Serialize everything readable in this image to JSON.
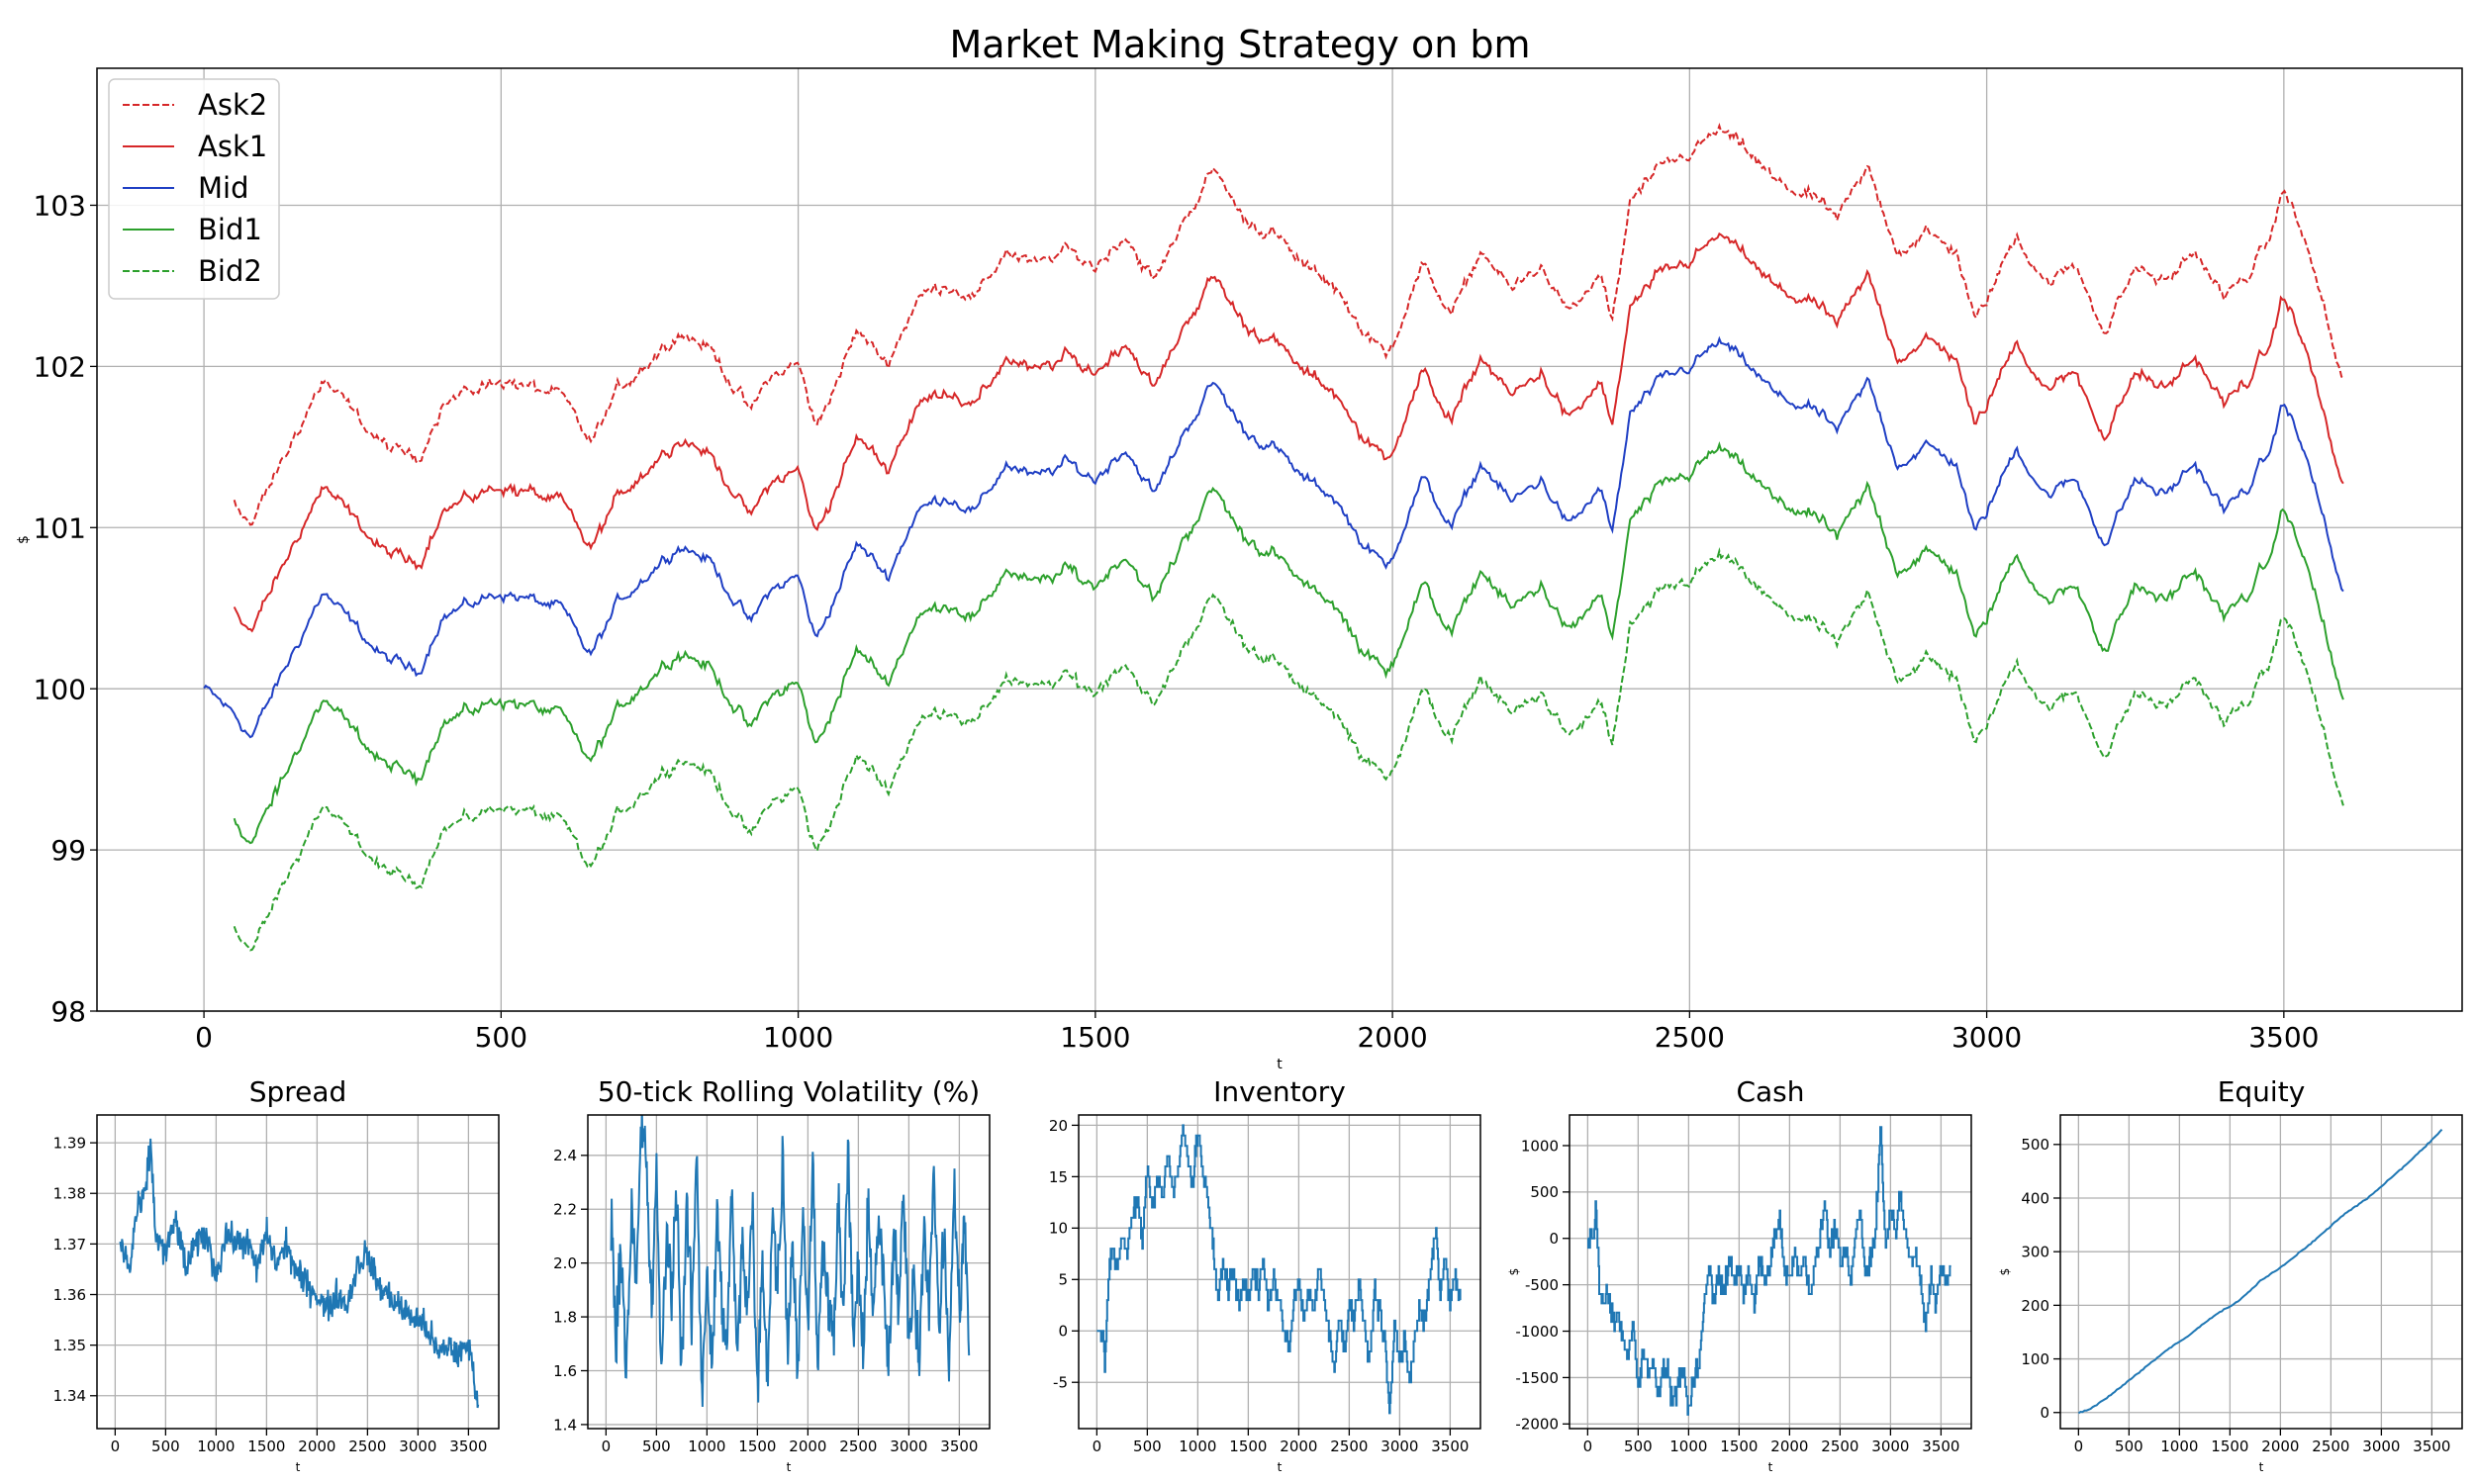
{
  "figure": {
    "title": "Market Making Strategy on bm"
  },
  "chart_data": [
    {
      "id": "main",
      "type": "line",
      "title": "Market Making Strategy on bm",
      "xlabel": "t",
      "ylabel": "$",
      "xlim": [
        -180,
        3800
      ],
      "ylim": [
        98,
        103.85
      ],
      "xticks": [
        "0",
        "500",
        "1000",
        "1500",
        "2000",
        "2500",
        "3000",
        "3500"
      ],
      "yticks": [
        "98",
        "99",
        "100",
        "101",
        "102",
        "103"
      ],
      "grid": true,
      "legend": {
        "placement": "top-left"
      },
      "x": [
        0,
        50,
        80,
        200,
        250,
        300,
        360,
        400,
        500,
        600,
        650,
        700,
        800,
        850,
        920,
        950,
        1000,
        1030,
        1100,
        1150,
        1200,
        1250,
        1300,
        1350,
        1400,
        1450,
        1500,
        1550,
        1600,
        1650,
        1700,
        1750,
        1800,
        1850,
        1900,
        1950,
        1990,
        2050,
        2100,
        2150,
        2200,
        2250,
        2300,
        2350,
        2370,
        2400,
        2450,
        2500,
        2550,
        2600,
        2650,
        2700,
        2750,
        2800,
        2850,
        2900,
        2950,
        2980,
        3000,
        3050,
        3100,
        3150,
        3200,
        3250,
        3300,
        3350,
        3400,
        3450,
        3480,
        3500,
        3550,
        3590,
        3600
      ],
      "series": [
        {
          "name": "Ask2",
          "color": "#d62728",
          "dashed": true,
          "offset": 1.32,
          "start": 50
        },
        {
          "name": "Ask1",
          "color": "#d62728",
          "dashed": false,
          "offset": 0.66,
          "start": 50
        },
        {
          "name": "Mid",
          "color": "#1f3fc4",
          "dashed": false,
          "offset": 0,
          "start": 0,
          "values": [
            100.0,
            99.85,
            99.7,
            100.6,
            100.4,
            100.2,
            100.1,
            100.45,
            100.6,
            100.5,
            100.2,
            100.55,
            100.9,
            100.8,
            100.4,
            100.6,
            100.7,
            100.3,
            100.9,
            100.7,
            101.1,
            101.2,
            101.1,
            101.4,
            101.3,
            101.4,
            101.3,
            101.5,
            101.2,
            101.6,
            101.9,
            101.6,
            101.5,
            101.3,
            101.2,
            100.9,
            100.75,
            101.3,
            101.0,
            101.4,
            101.15,
            101.3,
            101.0,
            101.25,
            100.95,
            101.7,
            101.9,
            102.0,
            102.15,
            102.0,
            101.8,
            101.75,
            101.6,
            101.9,
            101.4,
            101.5,
            101.4,
            100.95,
            101.1,
            101.5,
            101.2,
            101.3,
            100.9,
            101.3,
            101.2,
            101.4,
            101.1,
            101.3,
            101.5,
            101.8,
            101.3,
            100.7,
            100.6
          ]
        },
        {
          "name": "Bid1",
          "color": "#2ca02c",
          "dashed": false,
          "offset": -0.66,
          "start": 50
        },
        {
          "name": "Bid2",
          "color": "#2ca02c",
          "dashed": true,
          "offset": -1.32,
          "start": 50
        }
      ]
    },
    {
      "id": "spread",
      "type": "line",
      "title": "Spread",
      "xlabel": "t",
      "ylabel": "",
      "xlim": [
        -180,
        3800
      ],
      "ylim": [
        1.3335,
        1.3955
      ],
      "xticks": [
        "0",
        "500",
        "1000",
        "1500",
        "2000",
        "2500",
        "3000",
        "3500"
      ],
      "yticks": [
        "1.34",
        "1.35",
        "1.36",
        "1.37",
        "1.38",
        "1.39"
      ],
      "grid": true,
      "color": "#1f77b4",
      "x": [
        50,
        150,
        200,
        300,
        350,
        400,
        500,
        600,
        700,
        800,
        900,
        1000,
        1100,
        1200,
        1300,
        1400,
        1500,
        1600,
        1700,
        1800,
        1900,
        2000,
        2100,
        2200,
        2300,
        2400,
        2500,
        2600,
        2700,
        2800,
        2900,
        3000,
        3100,
        3200,
        3300,
        3400,
        3500,
        3550,
        3600
      ],
      "values": [
        1.37,
        1.365,
        1.375,
        1.38,
        1.39,
        1.372,
        1.368,
        1.375,
        1.365,
        1.37,
        1.372,
        1.364,
        1.372,
        1.37,
        1.371,
        1.365,
        1.372,
        1.366,
        1.37,
        1.364,
        1.362,
        1.36,
        1.357,
        1.36,
        1.358,
        1.366,
        1.368,
        1.362,
        1.36,
        1.358,
        1.356,
        1.355,
        1.353,
        1.348,
        1.35,
        1.348,
        1.35,
        1.345,
        1.337
      ]
    },
    {
      "id": "volatility",
      "type": "line",
      "title": "50-tick Rolling Volatility (%)",
      "xlabel": "t",
      "ylabel": "",
      "xlim": [
        -180,
        3800
      ],
      "ylim": [
        1.385,
        2.55
      ],
      "xticks": [
        "0",
        "500",
        "1000",
        "1500",
        "2000",
        "2500",
        "3000",
        "3500"
      ],
      "yticks": [
        "1.4",
        "1.6",
        "1.8",
        "2.0",
        "2.2",
        "2.4"
      ],
      "grid": true,
      "color": "#1f77b4",
      "x": [
        50,
        100,
        150,
        200,
        250,
        300,
        350,
        400,
        450,
        500,
        550,
        600,
        650,
        700,
        750,
        800,
        850,
        900,
        950,
        1000,
        1050,
        1100,
        1150,
        1200,
        1250,
        1300,
        1350,
        1400,
        1450,
        1500,
        1550,
        1600,
        1650,
        1700,
        1750,
        1800,
        1850,
        1900,
        1950,
        2000,
        2050,
        2100,
        2150,
        2200,
        2250,
        2300,
        2350,
        2400,
        2450,
        2500,
        2550,
        2600,
        2650,
        2700,
        2750,
        2800,
        2850,
        2900,
        2950,
        3000,
        3050,
        3100,
        3150,
        3200,
        3250,
        3300,
        3350,
        3400,
        3450,
        3500,
        3550,
        3600
      ],
      "values": [
        2.2,
        1.7,
        2.1,
        1.6,
        2.2,
        1.9,
        2.5,
        2.4,
        1.8,
        2.3,
        1.6,
        2.1,
        1.9,
        2.3,
        1.6,
        2.2,
        1.8,
        2.4,
        1.5,
        2.0,
        1.6,
        2.2,
        1.8,
        1.7,
        2.3,
        1.6,
        2.1,
        1.8,
        2.2,
        1.5,
        2.0,
        1.6,
        2.2,
        1.9,
        2.4,
        1.7,
        2.1,
        1.6,
        2.2,
        1.8,
        2.35,
        1.6,
        2.1,
        1.9,
        1.7,
        2.2,
        1.8,
        2.4,
        1.7,
        2.0,
        1.6,
        2.25,
        1.8,
        2.2,
        1.9,
        1.6,
        2.1,
        1.8,
        2.3,
        1.7,
        2.0,
        1.6,
        2.2,
        1.8,
        2.35,
        1.75,
        2.1,
        1.6,
        2.3,
        1.8,
        2.2,
        1.6
      ]
    },
    {
      "id": "inventory",
      "type": "line",
      "title": "Inventory",
      "xlabel": "t",
      "ylabel": "",
      "xlim": [
        -180,
        3800
      ],
      "ylim": [
        -9.5,
        21
      ],
      "xticks": [
        "0",
        "500",
        "1000",
        "1500",
        "2000",
        "2500",
        "3000",
        "3500"
      ],
      "yticks": [
        "-5",
        "0",
        "5",
        "10",
        "15",
        "20"
      ],
      "grid": true,
      "color": "#1f77b4",
      "step": true,
      "x": [
        0,
        60,
        80,
        100,
        120,
        150,
        200,
        250,
        300,
        350,
        400,
        450,
        500,
        550,
        600,
        650,
        700,
        750,
        800,
        850,
        900,
        950,
        1000,
        1050,
        1100,
        1150,
        1200,
        1250,
        1300,
        1350,
        1400,
        1450,
        1500,
        1550,
        1600,
        1650,
        1700,
        1750,
        1800,
        1850,
        1900,
        1950,
        2000,
        2050,
        2100,
        2150,
        2200,
        2250,
        2300,
        2350,
        2400,
        2450,
        2500,
        2550,
        2600,
        2650,
        2700,
        2750,
        2800,
        2850,
        2900,
        2950,
        3000,
        3050,
        3100,
        3150,
        3200,
        3250,
        3300,
        3350,
        3400,
        3450,
        3500,
        3550,
        3600
      ],
      "values": [
        0,
        0,
        -4,
        2,
        6,
        8,
        6,
        9,
        8,
        11,
        13,
        9,
        16,
        12,
        15,
        13,
        17,
        14,
        15,
        20,
        17,
        14,
        20,
        15,
        13,
        8,
        3,
        7,
        4,
        6,
        2,
        5,
        3,
        6,
        4,
        7,
        2,
        5,
        3,
        0,
        -2,
        3,
        5,
        1,
        4,
        2,
        6,
        3,
        0,
        -4,
        2,
        -2,
        3,
        1,
        5,
        0,
        -3,
        4,
        2,
        -1,
        -8,
        1,
        -3,
        -1,
        -5,
        0,
        2,
        1,
        5,
        10,
        4,
        7,
        3,
        5,
        3
      ]
    },
    {
      "id": "cash",
      "type": "line",
      "title": "Cash",
      "xlabel": "t",
      "ylabel": "$",
      "xlim": [
        -180,
        3800
      ],
      "ylim": [
        -2050,
        1330
      ],
      "xticks": [
        "0",
        "500",
        "1000",
        "1500",
        "2000",
        "2500",
        "3000",
        "3500"
      ],
      "yticks": [
        "-2000",
        "-1500",
        "-1000",
        "-500",
        "0",
        "500",
        "1000"
      ],
      "grid": true,
      "color": "#1f77b4",
      "step": true,
      "x": [
        0,
        60,
        80,
        100,
        120,
        150,
        200,
        250,
        300,
        350,
        400,
        450,
        500,
        550,
        600,
        650,
        700,
        750,
        800,
        850,
        900,
        950,
        1000,
        1050,
        1100,
        1150,
        1200,
        1250,
        1300,
        1350,
        1400,
        1450,
        1500,
        1550,
        1600,
        1650,
        1700,
        1750,
        1800,
        1850,
        1900,
        1950,
        2000,
        2050,
        2100,
        2150,
        2200,
        2250,
        2300,
        2350,
        2400,
        2450,
        2500,
        2550,
        2600,
        2650,
        2700,
        2750,
        2800,
        2850,
        2900,
        2950,
        3000,
        3050,
        3100,
        3150,
        3200,
        3250,
        3300,
        3350,
        3400,
        3450,
        3500,
        3550,
        3600
      ],
      "values": [
        0,
        0,
        400,
        -200,
        -600,
        -700,
        -600,
        -900,
        -800,
        -1100,
        -1300,
        -900,
        -1600,
        -1200,
        -1500,
        -1300,
        -1700,
        -1400,
        -1500,
        -1800,
        -1500,
        -1400,
        -1900,
        -1500,
        -1300,
        -800,
        -300,
        -700,
        -400,
        -600,
        -200,
        -500,
        -300,
        -600,
        -400,
        -700,
        -200,
        -500,
        -300,
        0,
        200,
        -300,
        -500,
        -100,
        -400,
        -200,
        -600,
        -300,
        0,
        400,
        -200,
        200,
        -300,
        -100,
        -500,
        0,
        300,
        -400,
        -200,
        100,
        1200,
        -100,
        300,
        100,
        500,
        0,
        -200,
        -100,
        -500,
        -1000,
        -400,
        -700,
        -300,
        -500,
        -300
      ]
    },
    {
      "id": "equity",
      "type": "line",
      "title": "Equity",
      "xlabel": "t",
      "ylabel": "$",
      "xlim": [
        -180,
        3800
      ],
      "ylim": [
        -30,
        555
      ],
      "xticks": [
        "0",
        "500",
        "1000",
        "1500",
        "2000",
        "2500",
        "3000",
        "3500"
      ],
      "yticks": [
        "0",
        "100",
        "200",
        "300",
        "400",
        "500"
      ],
      "grid": true,
      "color": "#1f77b4",
      "x": [
        0,
        100,
        300,
        600,
        900,
        1100,
        1300,
        1600,
        1800,
        2000,
        2300,
        2600,
        2900,
        3200,
        3400,
        3600
      ],
      "values": [
        0,
        5,
        30,
        75,
        120,
        145,
        175,
        210,
        245,
        270,
        315,
        365,
        405,
        455,
        490,
        527
      ]
    }
  ]
}
